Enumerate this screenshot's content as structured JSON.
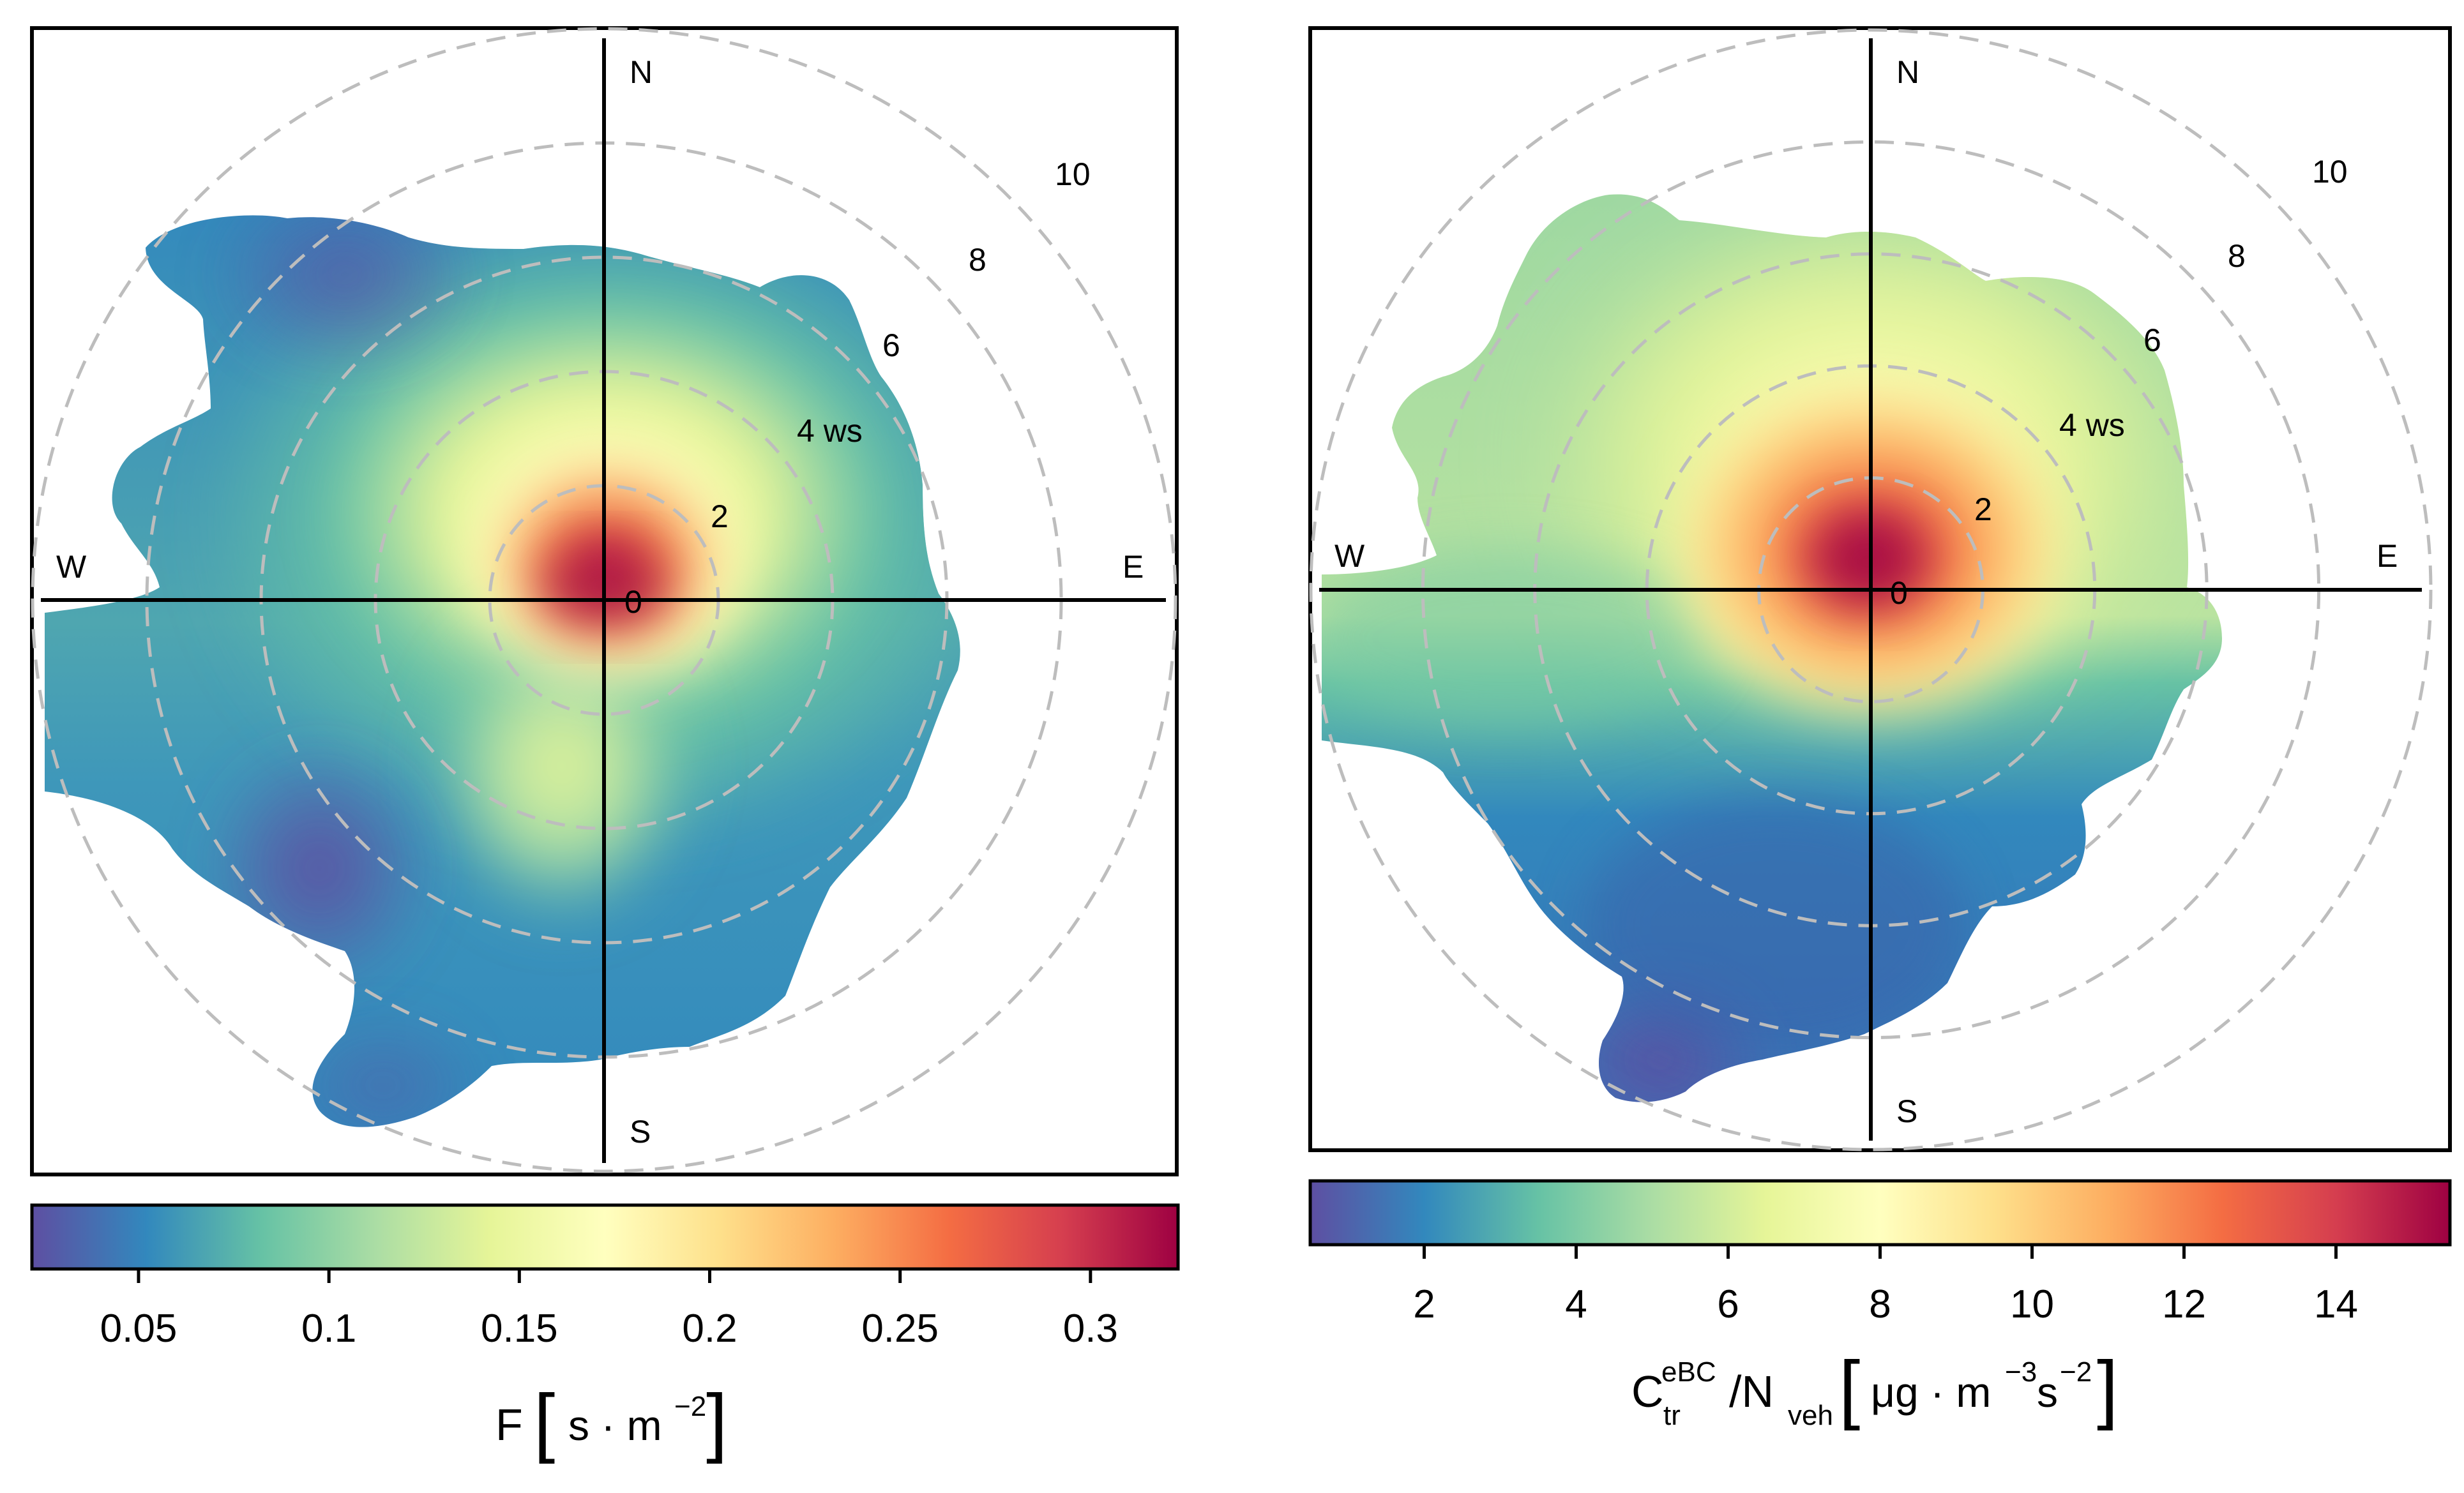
{
  "colors": {
    "scale": [
      "#5E4FA2",
      "#3288BD",
      "#66C2A5",
      "#ABDDA4",
      "#E6F598",
      "#FFFFBF",
      "#FEE08B",
      "#FDAE61",
      "#F46D43",
      "#D53E4F",
      "#9E0142"
    ],
    "ring": "#bdbdbd",
    "axis": "#000000"
  },
  "chart_data": [
    {
      "type": "heatmap",
      "subtype": "polar wind plot",
      "direction_labels": {
        "n": "N",
        "e": "E",
        "s": "S",
        "w": "W"
      },
      "ring_labels": [
        "0",
        "2",
        "4 ws",
        "6",
        "8",
        "10"
      ],
      "ring_values": [
        0,
        2,
        4,
        6,
        8,
        10
      ],
      "colorbar": {
        "ticks": [
          "0.05",
          "0.1",
          "0.15",
          "0.2",
          "0.25",
          "0.3"
        ],
        "tick_values": [
          0.05,
          0.1,
          0.15,
          0.2,
          0.25,
          0.3
        ],
        "range": [
          0.022,
          0.323
        ]
      },
      "label_main": "F",
      "label_units": "s · m",
      "label_exp": "−2",
      "hotspot": {
        "direction_deg": 0,
        "ws": 0.3,
        "value": 0.32
      }
    },
    {
      "type": "heatmap",
      "subtype": "polar wind plot",
      "direction_labels": {
        "n": "N",
        "e": "E",
        "s": "S",
        "w": "W"
      },
      "ring_labels": [
        "0",
        "2",
        "4 ws",
        "6",
        "8",
        "10"
      ],
      "ring_values": [
        0,
        2,
        4,
        6,
        8,
        10
      ],
      "colorbar": {
        "ticks": [
          "2",
          "4",
          "6",
          "8",
          "10",
          "12",
          "14"
        ],
        "tick_values": [
          2,
          4,
          6,
          8,
          10,
          12,
          14
        ],
        "range": [
          0.5,
          15.5
        ]
      },
      "label_c": "C",
      "label_c_sub": "tr",
      "label_c_sup": "eBC",
      "label_slash": "/N",
      "label_n_sub": "veh",
      "label_units_a": "μg · m",
      "label_units_exp_a": "−3",
      "label_units_b": "s",
      "label_units_exp_b": "−2",
      "hotspot": {
        "direction_deg": 0,
        "ws": 0.3,
        "value": 15.0
      }
    }
  ]
}
